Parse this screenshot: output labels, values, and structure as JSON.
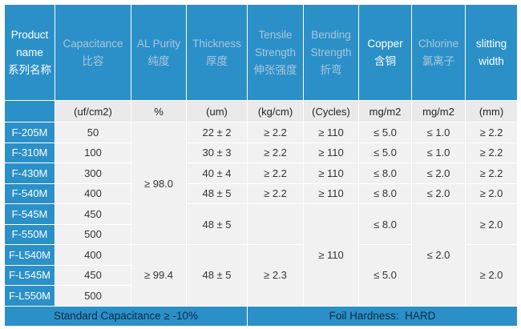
{
  "header": {
    "columns": [
      [
        "Product",
        "name",
        "系列名称"
      ],
      [
        "Capacitance",
        "比容"
      ],
      [
        "AL Purity",
        "纯度"
      ],
      [
        "Thickness",
        "厚度"
      ],
      [
        "Tensile",
        "Strength",
        "伸张强度"
      ],
      [
        "Bending",
        "Strength",
        "折弯"
      ],
      [
        "Copper",
        "含铜"
      ],
      [
        "Chlorine",
        "氯离子"
      ],
      [
        "slitting",
        "width"
      ]
    ],
    "units": [
      "(uf/cm2)",
      "%",
      "(um)",
      "(kg/cm)",
      "(Cycles)",
      "mg/m2",
      "mg/m2",
      "(mm)"
    ]
  },
  "table": {
    "rows": [
      [
        "F-205M",
        "50",
        "≥ 98.0",
        "22 ± 2",
        "≥ 2.2",
        "≥ 110",
        "≤ 5.0",
        "≤ 1.0",
        "≥ 2.2"
      ],
      [
        "F-310M",
        "100",
        "30 ± 3",
        "≥ 2.2",
        "≥ 110",
        "≤ 5.0",
        "≤ 1.0",
        "≥ 2.2"
      ],
      [
        "F-430M",
        "300",
        "40 ± 4",
        "≥ 2.2",
        "≥ 110",
        "≤ 8.0",
        "≤ 2.0",
        "≥ 2.2"
      ],
      [
        "F-540M",
        "400",
        "48 ± 5",
        "≥ 2.2",
        "≥ 110",
        "≤ 8.0",
        "≤ 2.0",
        "≥ 2.0"
      ],
      [
        "F-545M",
        "450",
        "48 ± 5",
        "≥ 110",
        "≤ 8.0",
        "≤ 2.0",
        "≥ 2.0"
      ],
      [
        "F-550M",
        "500"
      ],
      [
        "F-L540M",
        "400",
        "≥ 99.4",
        "48 ± 5",
        "≥ 2.3",
        "≤ 5.0",
        "≥ 2.0"
      ],
      [
        "F-L545M",
        "450"
      ],
      [
        "F-L550M",
        "500"
      ]
    ],
    "footer": [
      "Standard Capacitance ≥ -10%",
      "Foil Hardness:  HARD"
    ]
  }
}
